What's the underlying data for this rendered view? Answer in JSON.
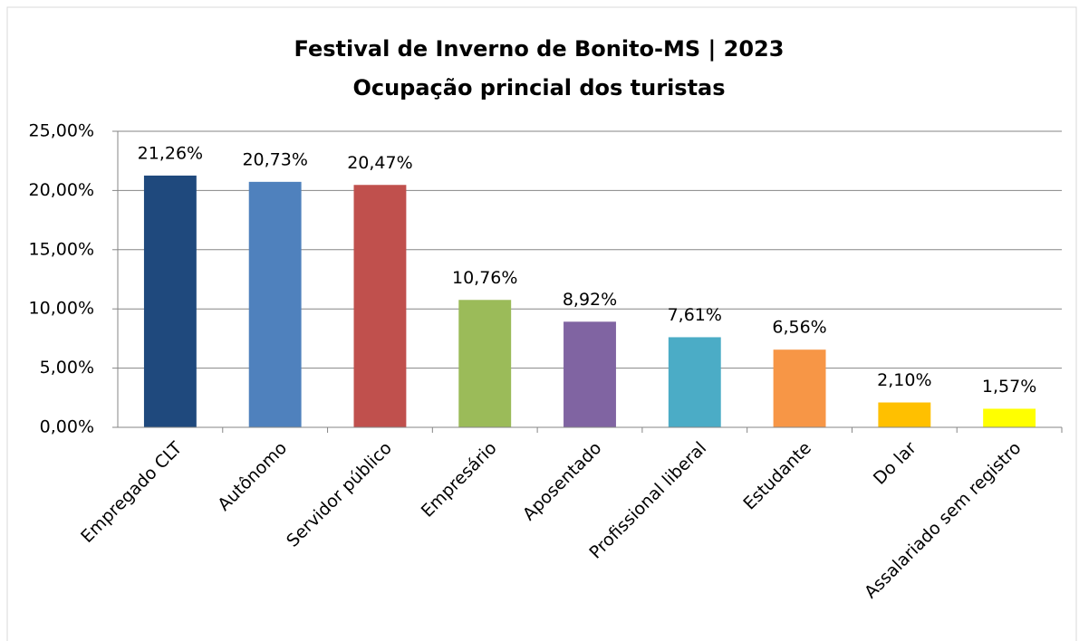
{
  "chart_data": {
    "type": "bar",
    "title": "Festival de Inverno de Bonito-MS | 2023",
    "subtitle": "Ocupação princial dos turistas",
    "categories": [
      "Empregado CLT",
      "Autônomo",
      "Servidor público",
      "Empresário",
      "Aposentado",
      "Profissional liberal",
      "Estudante",
      "Do lar",
      "Assalariado sem registro"
    ],
    "values": [
      21.26,
      20.73,
      20.47,
      10.76,
      8.92,
      7.61,
      6.56,
      2.1,
      1.57
    ],
    "value_labels": [
      "21,26%",
      "20,73%",
      "20,47%",
      "10,76%",
      "8,92%",
      "7,61%",
      "6,56%",
      "2,10%",
      "1,57%"
    ],
    "colors": [
      "#1f497d",
      "#4f81bd",
      "#c0504d",
      "#9bbb59",
      "#8064a2",
      "#4bacc6",
      "#f79646",
      "#ffc000",
      "#ffff00"
    ],
    "ylim": [
      0,
      25
    ],
    "yticks": [
      {
        "value": 0,
        "label": "0,00%"
      },
      {
        "value": 5,
        "label": "5,00%"
      },
      {
        "value": 10,
        "label": "10,00%"
      },
      {
        "value": 15,
        "label": "15,00%"
      },
      {
        "value": 20,
        "label": "20,00%"
      },
      {
        "value": 25,
        "label": "25,00%"
      }
    ],
    "grid": true
  }
}
